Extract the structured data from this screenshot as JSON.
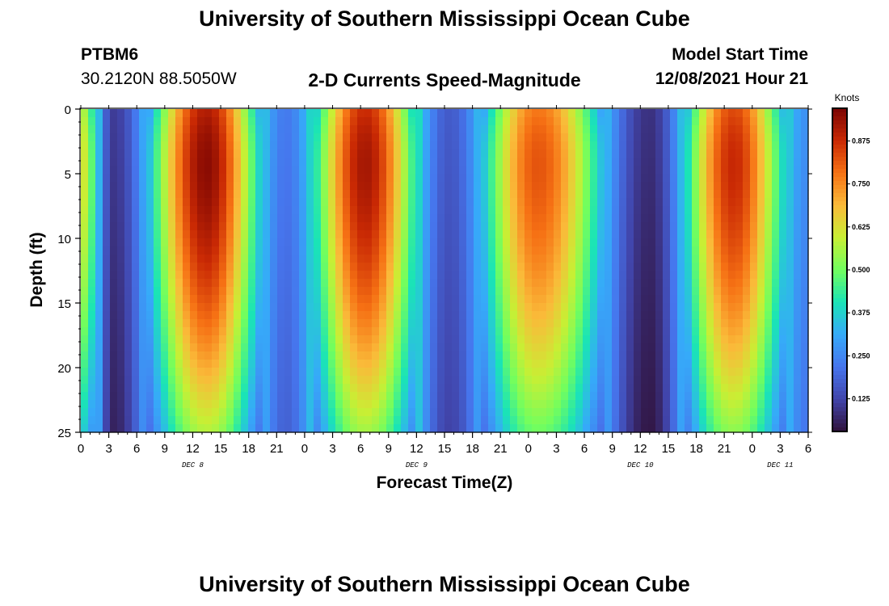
{
  "header": {
    "title": "University of Southern Mississippi Ocean Cube",
    "station_id": "PTBM6",
    "coordinates": "30.2120N  88.5050W",
    "subtitle": "2-D Currents Speed-Magnitude",
    "model_start_label": "Model Start Time",
    "model_start_value": "12/08/2021 Hour 21"
  },
  "footer": {
    "title": "University of Southern Mississippi Ocean Cube"
  },
  "chart_data": {
    "type": "heatmap",
    "title": "2-D Currents Speed-Magnitude",
    "xlabel": "Forecast Time(Z)",
    "ylabel": "Depth (ft)",
    "x_ticks": [
      "0",
      "3",
      "6",
      "9",
      "12",
      "15",
      "18",
      "21",
      "0",
      "3",
      "6",
      "9",
      "12",
      "15",
      "18",
      "21",
      "0",
      "3",
      "6",
      "9",
      "12",
      "15",
      "18",
      "21",
      "0",
      "3",
      "6"
    ],
    "x_range_hours": [
      0,
      78
    ],
    "day_labels": [
      {
        "label": "DEC 8",
        "hour": 12
      },
      {
        "label": "DEC 9",
        "hour": 36
      },
      {
        "label": "DEC 10",
        "hour": 60
      },
      {
        "label": "DEC 11",
        "hour": 75
      }
    ],
    "y_ticks": [
      0,
      5,
      10,
      15,
      20,
      25
    ],
    "y_range_ft": [
      0,
      25
    ],
    "colorbar": {
      "label": "Knots",
      "range": [
        0.03,
        0.97
      ],
      "ticks": [
        "0.125",
        "0.250",
        "0.375",
        "0.500",
        "0.625",
        "0.750",
        "0.875"
      ],
      "tick_values": [
        0.125,
        0.25,
        0.375,
        0.5,
        0.625,
        0.75,
        0.875
      ]
    },
    "value_peaks_hours": [
      {
        "hour": 0.0,
        "speed_knots": 0.62
      },
      {
        "hour": 3.5,
        "speed_knots": 0.06
      },
      {
        "hour": 13.5,
        "speed_knots": 0.95
      },
      {
        "hour": 22.0,
        "speed_knots": 0.18
      },
      {
        "hour": 30.5,
        "speed_knots": 0.92
      },
      {
        "hour": 39.5,
        "speed_knots": 0.12
      },
      {
        "hour": 49.0,
        "speed_knots": 0.82
      },
      {
        "hour": 61.0,
        "speed_knots": 0.04
      },
      {
        "hour": 70.0,
        "speed_knots": 0.88
      },
      {
        "hour": 78.0,
        "speed_knots": 0.22
      }
    ]
  }
}
